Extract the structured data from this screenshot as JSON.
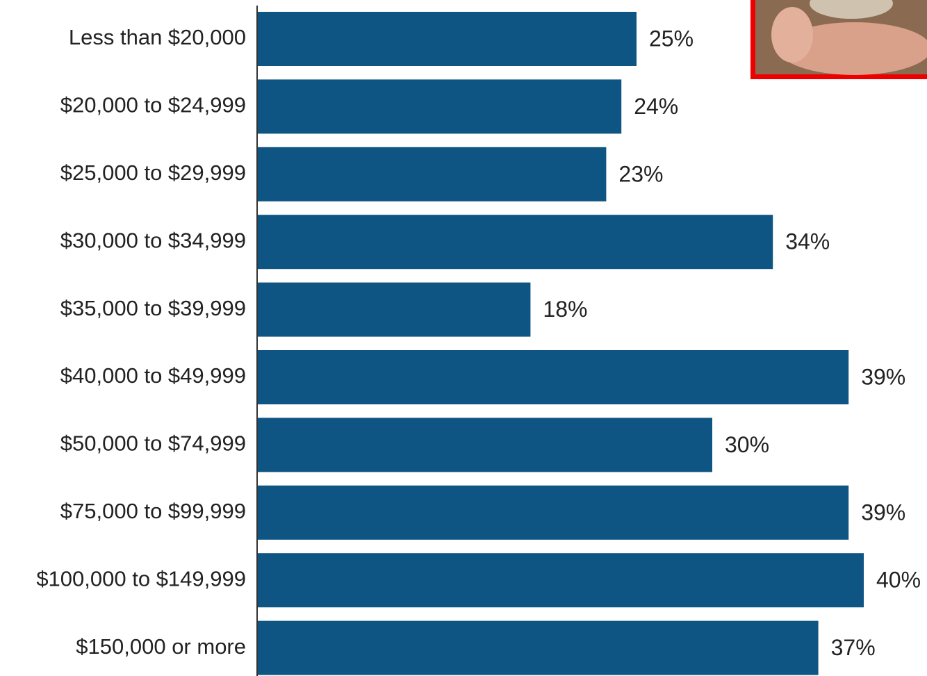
{
  "chart_data": {
    "type": "bar",
    "orientation": "horizontal",
    "categories": [
      "Less than $20,000",
      "$20,000 to $24,999",
      "$25,000 to $29,999",
      "$30,000 to $34,999",
      "$35,000 to $39,999",
      "$40,000 to $49,999",
      "$50,000 to $74,999",
      "$75,000 to $99,999",
      "$100,000 to $149,999",
      "$150,000 or more"
    ],
    "values": [
      25,
      24,
      23,
      34,
      18,
      39,
      30,
      39,
      40,
      37
    ],
    "value_labels": [
      "25%",
      "24%",
      "23%",
      "34%",
      "18%",
      "39%",
      "30%",
      "39%",
      "40%",
      "37%"
    ],
    "color": "#0f5583"
  }
}
